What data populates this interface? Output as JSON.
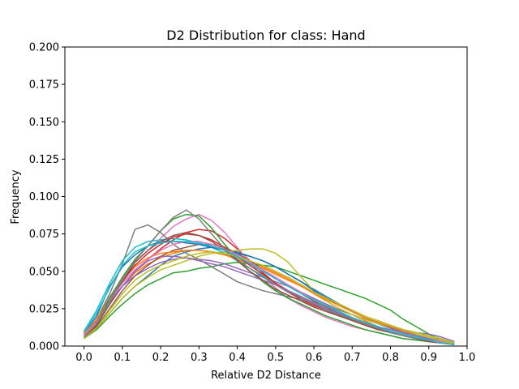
{
  "chart_data": {
    "type": "line",
    "title": "D2 Distribution for class: Hand",
    "xlabel": "Relative D2 Distance",
    "ylabel": "Frequency",
    "xlim": [
      -0.05,
      1.0
    ],
    "ylim": [
      0,
      0.2
    ],
    "grid": false,
    "legend": "none",
    "xticks": [
      "0.0",
      "0.1",
      "0.2",
      "0.3",
      "0.4",
      "0.5",
      "0.6",
      "0.7",
      "0.8",
      "0.9",
      "1.0"
    ],
    "yticks": [
      "0.000",
      "0.025",
      "0.050",
      "0.075",
      "0.100",
      "0.125",
      "0.150",
      "0.175",
      "0.200"
    ],
    "x": [
      0.0,
      0.033,
      0.067,
      0.1,
      0.133,
      0.167,
      0.2,
      0.233,
      0.267,
      0.3,
      0.333,
      0.367,
      0.4,
      0.433,
      0.467,
      0.5,
      0.533,
      0.567,
      0.6,
      0.633,
      0.667,
      0.7,
      0.733,
      0.767,
      0.8,
      0.833,
      0.867,
      0.9,
      0.933,
      0.967
    ],
    "series": [
      {
        "color": "#1f77b4",
        "values": [
          0.006,
          0.012,
          0.022,
          0.032,
          0.04,
          0.047,
          0.054,
          0.06,
          0.063,
          0.065,
          0.066,
          0.065,
          0.063,
          0.06,
          0.057,
          0.053,
          0.048,
          0.043,
          0.038,
          0.033,
          0.028,
          0.023,
          0.019,
          0.015,
          0.012,
          0.009,
          0.007,
          0.005,
          0.003,
          0.002
        ]
      },
      {
        "color": "#ff7f0e",
        "values": [
          0.007,
          0.016,
          0.028,
          0.04,
          0.049,
          0.055,
          0.059,
          0.062,
          0.064,
          0.064,
          0.063,
          0.061,
          0.059,
          0.056,
          0.053,
          0.049,
          0.045,
          0.04,
          0.035,
          0.03,
          0.025,
          0.021,
          0.017,
          0.013,
          0.01,
          0.008,
          0.006,
          0.004,
          0.003,
          0.001
        ]
      },
      {
        "color": "#2ca02c",
        "values": [
          0.005,
          0.011,
          0.02,
          0.028,
          0.035,
          0.041,
          0.045,
          0.049,
          0.05,
          0.052,
          0.053,
          0.055,
          0.056,
          0.055,
          0.054,
          0.053,
          0.05,
          0.047,
          0.044,
          0.041,
          0.038,
          0.035,
          0.032,
          0.028,
          0.024,
          0.018,
          0.013,
          0.008,
          0.004,
          0.002
        ]
      },
      {
        "color": "#d62728",
        "values": [
          0.006,
          0.015,
          0.028,
          0.04,
          0.05,
          0.058,
          0.065,
          0.071,
          0.076,
          0.078,
          0.077,
          0.072,
          0.065,
          0.057,
          0.049,
          0.042,
          0.036,
          0.031,
          0.027,
          0.024,
          0.021,
          0.018,
          0.015,
          0.012,
          0.009,
          0.007,
          0.005,
          0.003,
          0.002,
          0.001
        ]
      },
      {
        "color": "#9467bd",
        "values": [
          0.007,
          0.017,
          0.03,
          0.04,
          0.047,
          0.052,
          0.056,
          0.058,
          0.059,
          0.058,
          0.057,
          0.055,
          0.052,
          0.049,
          0.046,
          0.043,
          0.04,
          0.036,
          0.032,
          0.028,
          0.024,
          0.021,
          0.018,
          0.015,
          0.013,
          0.011,
          0.009,
          0.008,
          0.006,
          0.003
        ]
      },
      {
        "color": "#8c564b",
        "values": [
          0.005,
          0.013,
          0.025,
          0.037,
          0.047,
          0.054,
          0.06,
          0.064,
          0.066,
          0.068,
          0.068,
          0.066,
          0.062,
          0.057,
          0.051,
          0.045,
          0.04,
          0.035,
          0.03,
          0.026,
          0.022,
          0.018,
          0.015,
          0.012,
          0.01,
          0.008,
          0.006,
          0.004,
          0.003,
          0.001
        ]
      },
      {
        "color": "#e377c2",
        "values": [
          0.007,
          0.018,
          0.033,
          0.045,
          0.056,
          0.064,
          0.072,
          0.08,
          0.085,
          0.088,
          0.084,
          0.076,
          0.066,
          0.056,
          0.047,
          0.039,
          0.032,
          0.027,
          0.023,
          0.019,
          0.016,
          0.013,
          0.011,
          0.009,
          0.007,
          0.005,
          0.004,
          0.003,
          0.002,
          0.001
        ]
      },
      {
        "color": "#7f7f7f",
        "values": [
          0.006,
          0.018,
          0.035,
          0.055,
          0.078,
          0.081,
          0.076,
          0.068,
          0.062,
          0.058,
          0.053,
          0.048,
          0.043,
          0.04,
          0.037,
          0.035,
          0.033,
          0.031,
          0.029,
          0.027,
          0.024,
          0.021,
          0.018,
          0.015,
          0.012,
          0.01,
          0.008,
          0.006,
          0.004,
          0.002
        ]
      },
      {
        "color": "#bcbd22",
        "values": [
          0.006,
          0.012,
          0.022,
          0.032,
          0.04,
          0.046,
          0.051,
          0.054,
          0.057,
          0.06,
          0.062,
          0.063,
          0.064,
          0.065,
          0.065,
          0.062,
          0.056,
          0.046,
          0.037,
          0.03,
          0.025,
          0.021,
          0.018,
          0.015,
          0.013,
          0.011,
          0.009,
          0.007,
          0.005,
          0.002
        ]
      },
      {
        "color": "#17becf",
        "values": [
          0.01,
          0.024,
          0.042,
          0.057,
          0.066,
          0.07,
          0.071,
          0.072,
          0.071,
          0.069,
          0.066,
          0.062,
          0.057,
          0.052,
          0.047,
          0.042,
          0.037,
          0.033,
          0.029,
          0.025,
          0.021,
          0.017,
          0.014,
          0.011,
          0.009,
          0.007,
          0.005,
          0.004,
          0.003,
          0.001
        ]
      },
      {
        "color": "#1f77b4",
        "values": [
          0.008,
          0.02,
          0.04,
          0.053,
          0.061,
          0.067,
          0.07,
          0.07,
          0.069,
          0.068,
          0.066,
          0.064,
          0.062,
          0.06,
          0.057,
          0.053,
          0.048,
          0.043,
          0.037,
          0.032,
          0.027,
          0.023,
          0.019,
          0.016,
          0.013,
          0.01,
          0.007,
          0.005,
          0.003,
          0.001
        ]
      },
      {
        "color": "#ff7f0e",
        "values": [
          0.008,
          0.018,
          0.032,
          0.044,
          0.053,
          0.059,
          0.062,
          0.063,
          0.064,
          0.064,
          0.063,
          0.061,
          0.058,
          0.055,
          0.052,
          0.048,
          0.044,
          0.04,
          0.036,
          0.031,
          0.027,
          0.023,
          0.019,
          0.016,
          0.013,
          0.01,
          0.007,
          0.005,
          0.003,
          0.001
        ]
      },
      {
        "color": "#2ca02c",
        "values": [
          0.006,
          0.016,
          0.032,
          0.046,
          0.058,
          0.067,
          0.077,
          0.085,
          0.088,
          0.087,
          0.079,
          0.068,
          0.058,
          0.05,
          0.043,
          0.037,
          0.032,
          0.028,
          0.024,
          0.02,
          0.017,
          0.014,
          0.011,
          0.009,
          0.007,
          0.005,
          0.004,
          0.003,
          0.002,
          0.001
        ]
      },
      {
        "color": "#d62728",
        "values": [
          0.007,
          0.016,
          0.03,
          0.043,
          0.054,
          0.062,
          0.068,
          0.073,
          0.075,
          0.074,
          0.071,
          0.066,
          0.06,
          0.054,
          0.048,
          0.042,
          0.037,
          0.032,
          0.028,
          0.024,
          0.02,
          0.017,
          0.014,
          0.011,
          0.009,
          0.007,
          0.005,
          0.003,
          0.002,
          0.001
        ]
      },
      {
        "color": "#9467bd",
        "values": [
          0.006,
          0.015,
          0.028,
          0.04,
          0.05,
          0.057,
          0.06,
          0.06,
          0.059,
          0.057,
          0.055,
          0.053,
          0.05,
          0.047,
          0.044,
          0.041,
          0.037,
          0.033,
          0.029,
          0.025,
          0.022,
          0.019,
          0.016,
          0.013,
          0.011,
          0.009,
          0.007,
          0.005,
          0.003,
          0.001
        ]
      },
      {
        "color": "#8c564b",
        "values": [
          0.005,
          0.014,
          0.028,
          0.043,
          0.056,
          0.064,
          0.07,
          0.074,
          0.076,
          0.074,
          0.07,
          0.064,
          0.057,
          0.05,
          0.044,
          0.038,
          0.034,
          0.03,
          0.026,
          0.023,
          0.02,
          0.017,
          0.014,
          0.011,
          0.009,
          0.007,
          0.005,
          0.003,
          0.002,
          0.001
        ]
      },
      {
        "color": "#e377c2",
        "values": [
          0.007,
          0.016,
          0.03,
          0.042,
          0.051,
          0.058,
          0.064,
          0.068,
          0.07,
          0.07,
          0.068,
          0.065,
          0.061,
          0.056,
          0.051,
          0.046,
          0.041,
          0.036,
          0.031,
          0.027,
          0.023,
          0.019,
          0.016,
          0.013,
          0.01,
          0.008,
          0.006,
          0.004,
          0.003,
          0.001
        ]
      },
      {
        "color": "#7f7f7f",
        "values": [
          0.006,
          0.015,
          0.03,
          0.045,
          0.057,
          0.067,
          0.077,
          0.086,
          0.091,
          0.085,
          0.075,
          0.065,
          0.058,
          0.052,
          0.046,
          0.041,
          0.036,
          0.032,
          0.028,
          0.024,
          0.021,
          0.018,
          0.015,
          0.012,
          0.009,
          0.007,
          0.005,
          0.004,
          0.002,
          0.001
        ]
      },
      {
        "color": "#bcbd22",
        "values": [
          0.005,
          0.012,
          0.024,
          0.035,
          0.044,
          0.05,
          0.054,
          0.057,
          0.06,
          0.062,
          0.063,
          0.062,
          0.06,
          0.057,
          0.054,
          0.05,
          0.046,
          0.041,
          0.036,
          0.032,
          0.028,
          0.024,
          0.02,
          0.017,
          0.014,
          0.011,
          0.008,
          0.006,
          0.004,
          0.001
        ]
      },
      {
        "color": "#17becf",
        "values": [
          0.009,
          0.022,
          0.039,
          0.054,
          0.063,
          0.067,
          0.069,
          0.07,
          0.07,
          0.069,
          0.067,
          0.064,
          0.06,
          0.055,
          0.05,
          0.045,
          0.04,
          0.035,
          0.031,
          0.027,
          0.023,
          0.019,
          0.016,
          0.013,
          0.01,
          0.008,
          0.006,
          0.004,
          0.002,
          0.001
        ]
      }
    ]
  }
}
